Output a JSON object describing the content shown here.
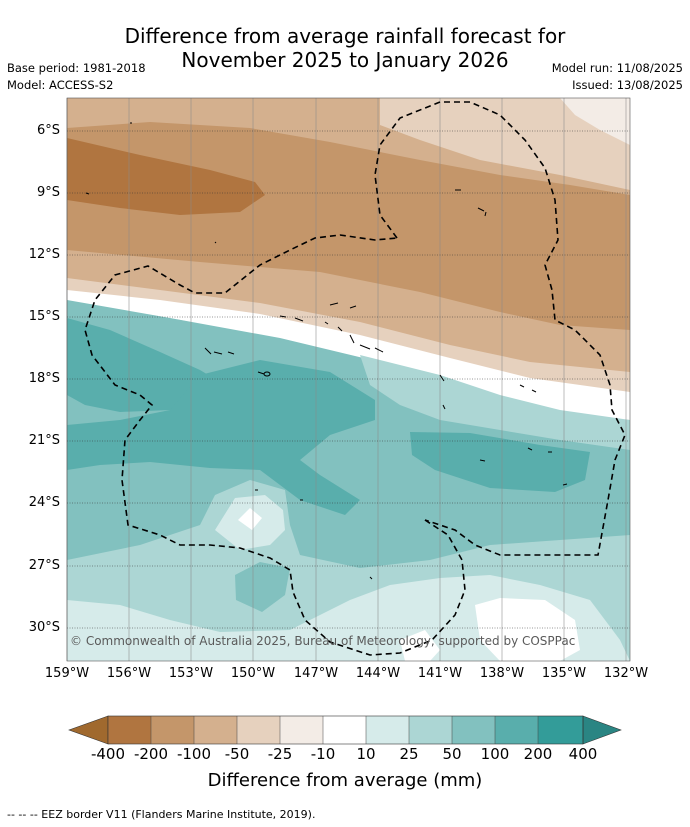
{
  "title": {
    "line1": "Difference from average rainfall forecast for",
    "line2": "November 2025 to January 2026"
  },
  "meta": {
    "base_period": "Base period: 1981-2018",
    "model": "Model: ACCESS-S2",
    "model_run": "Model run: 11/08/2025",
    "issued": "Issued: 13/08/2025"
  },
  "map": {
    "lat_labels": [
      "6°S",
      "9°S",
      "12°S",
      "15°S",
      "18°S",
      "21°S",
      "24°S",
      "27°S",
      "30°S"
    ],
    "lon_labels": [
      "159°W",
      "156°W",
      "153°W",
      "150°W",
      "147°W",
      "144°W",
      "141°W",
      "138°W",
      "135°W",
      "132°W"
    ],
    "copyright": "© Commonwealth of Australia 2025, Bureau of Meteorology, supported by COSPPac",
    "colors": {
      "lt_neg400": "#a0692e",
      "neg400_200": "#b07540",
      "neg200_100": "#c4966a",
      "neg100_50": "#d4b08e",
      "neg50_25": "#e6d1be",
      "neg25_10": "#f3ece6",
      "neg10_10": "#ffffff",
      "p10_25": "#d6ebea",
      "p25_50": "#acd6d4",
      "p50_100": "#82c1bf",
      "p100_200": "#59aeac",
      "p200_400": "#339c99",
      "gt400": "#2a8583"
    }
  },
  "colorbar": {
    "ticks": [
      "-400",
      "-200",
      "-100",
      "-50",
      "-25",
      "-10",
      "10",
      "25",
      "50",
      "100",
      "200",
      "400"
    ],
    "label": "Difference from average (mm)"
  },
  "footnote": "--  --  -- EEZ border V11 (Flanders Marine Institute, 2019)."
}
